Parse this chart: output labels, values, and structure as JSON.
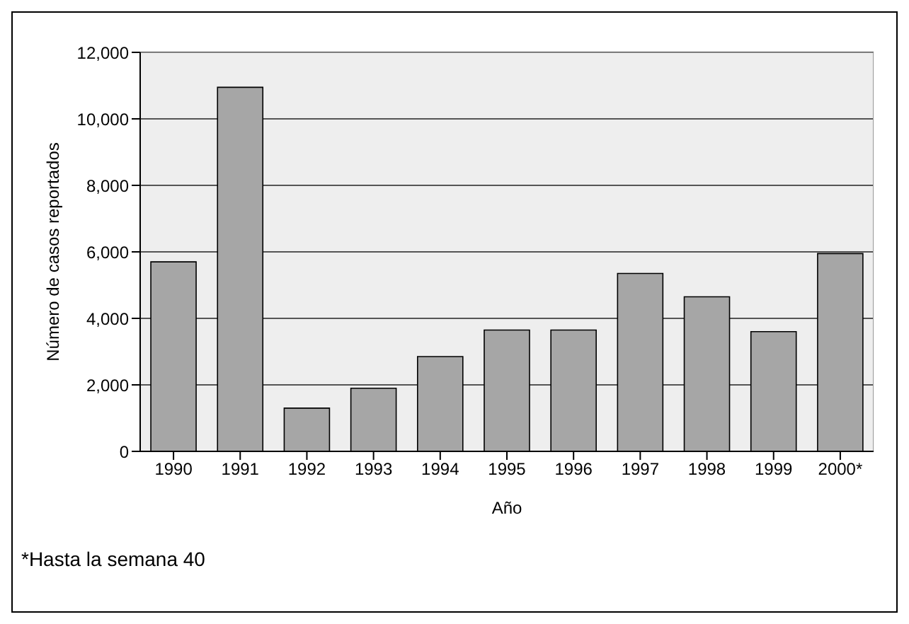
{
  "chart_data": {
    "type": "bar",
    "xlabel": "Año",
    "ylabel": "Número de casos reportados",
    "categories": [
      "1990",
      "1991",
      "1992",
      "1993",
      "1994",
      "1995",
      "1996",
      "1997",
      "1998",
      "1999",
      "2000*"
    ],
    "values": [
      5700,
      10950,
      1300,
      1900,
      2850,
      3650,
      3650,
      5350,
      4650,
      3600,
      5950
    ],
    "color": "#a6a6a6",
    "ylim": [
      0,
      12000
    ],
    "yticks": [
      {
        "value": 0,
        "label": "0"
      },
      {
        "value": 2000,
        "label": "2,000"
      },
      {
        "value": 4000,
        "label": "4,000"
      },
      {
        "value": 6000,
        "label": "6,000"
      },
      {
        "value": 8000,
        "label": "8,000"
      },
      {
        "value": 10000,
        "label": "10,000"
      },
      {
        "value": 12000,
        "label": "12,000"
      }
    ],
    "grid": "y",
    "annotations": [
      "*Hasta la semana 40"
    ]
  }
}
